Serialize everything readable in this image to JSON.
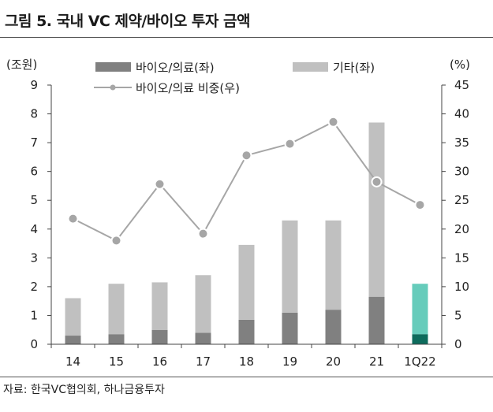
{
  "title": "그림 5. 국내 VC 제약/바이오 투자 금액",
  "source": "자료: 한국VC협의회, 하나금융투자",
  "chart_data": {
    "type": "bar",
    "stacked": true,
    "categories": [
      "14",
      "15",
      "16",
      "17",
      "18",
      "19",
      "20",
      "21",
      "1Q22"
    ],
    "left_axis": {
      "unit": "(조원)",
      "min": 0,
      "max": 9,
      "ticks": [
        "0",
        "1",
        "2",
        "3",
        "4",
        "5",
        "6",
        "7",
        "8",
        "9"
      ]
    },
    "right_axis": {
      "unit": "(%)",
      "min": 0,
      "max": 45,
      "ticks": [
        "0",
        "5",
        "10",
        "15",
        "20",
        "25",
        "30",
        "35",
        "40",
        "45"
      ]
    },
    "series": [
      {
        "name": "바이오/의료(좌)",
        "kind": "bar",
        "axis": "left",
        "color": "#808080",
        "values": [
          0.3,
          0.35,
          0.5,
          0.4,
          0.85,
          1.1,
          1.2,
          1.65,
          0.35
        ]
      },
      {
        "name": "기타(좌)",
        "kind": "bar",
        "axis": "left",
        "color": "#c0c0c0",
        "values": [
          1.3,
          1.75,
          1.65,
          2.0,
          2.6,
          3.2,
          3.1,
          6.05,
          1.75
        ]
      },
      {
        "name": "바이오/의료 비중(우)",
        "kind": "line",
        "axis": "right",
        "color": "#a6a6a6",
        "x": [
          "14",
          "15",
          "16",
          "17",
          "18",
          "19",
          "20",
          "21",
          "1Q22"
        ],
        "values": [
          21.8,
          18.0,
          27.8,
          19.2,
          32.8,
          34.8,
          38.6,
          28.2,
          24.2
        ]
      }
    ],
    "highlight": {
      "category": "1Q22",
      "bottom_color": "#0d6b5c",
      "top_color": "#66ccbb"
    },
    "legend_position": "top",
    "grid": false
  }
}
